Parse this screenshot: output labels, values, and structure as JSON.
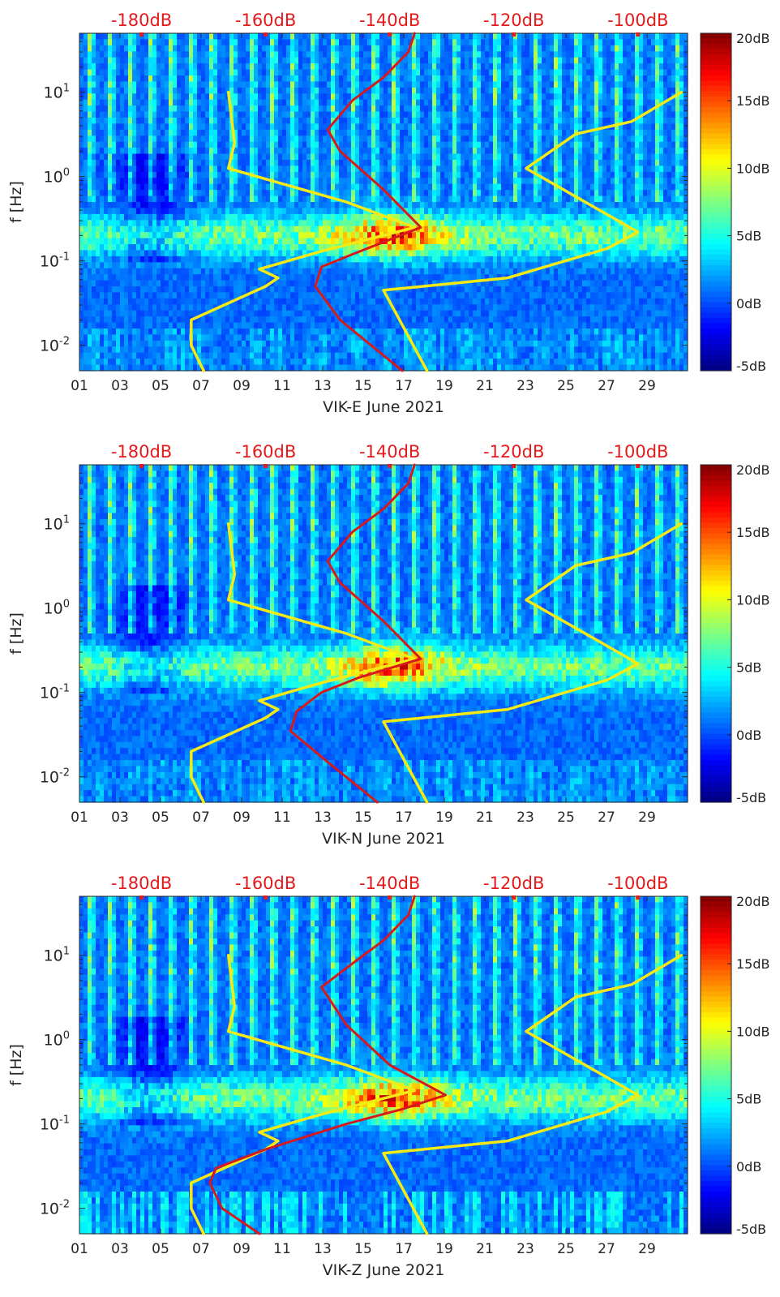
{
  "colors": {
    "top_axis_red": "#e41a1c",
    "noise_model_yellow": "#f5ea14",
    "psd_red": "#d7191c",
    "axis": "#262626",
    "colormap": [
      "#00008f",
      "#0000ff",
      "#0080ff",
      "#00ffff",
      "#80ff80",
      "#ffff00",
      "#ff8000",
      "#ff0000",
      "#800000"
    ]
  },
  "chart_data": [
    {
      "type": "heatmap",
      "title": "",
      "xlabel": "VIK-E June 2021",
      "ylabel": "f [Hz]",
      "x_ticks": [
        "01",
        "03",
        "05",
        "07",
        "09",
        "11",
        "13",
        "15",
        "17",
        "19",
        "21",
        "23",
        "25",
        "27",
        "29"
      ],
      "y_ticks": [
        "10^-2",
        "10^-1",
        "10^0",
        "10^1"
      ],
      "y_scale": "log",
      "ylim_hz": [
        0.005,
        50
      ],
      "xlim_day": [
        1,
        31
      ],
      "top_axis_ticks": [
        "-180dB",
        "-160dB",
        "-140dB",
        "-120dB",
        "-100dB"
      ],
      "top_axis_range_db": [
        -190,
        -92
      ],
      "colorbar": {
        "ticks": [
          "20dB",
          "15dB",
          "10dB",
          "5dB",
          "0dB",
          "-5dB"
        ],
        "range_db": [
          -5,
          20
        ]
      },
      "low_noise_model": [
        [
          -170,
          0.005
        ],
        [
          -172,
          0.01
        ],
        [
          -172,
          0.02
        ],
        [
          -160,
          0.05
        ],
        [
          -158,
          0.063
        ],
        [
          -161,
          0.08
        ],
        [
          -151,
          0.13
        ],
        [
          -136,
          0.25
        ],
        [
          -147,
          0.5
        ],
        [
          -166,
          1.25
        ],
        [
          -165,
          2.5
        ],
        [
          -166,
          10
        ]
      ],
      "high_noise_model": [
        [
          -134,
          0.005
        ],
        [
          -141,
          0.045
        ],
        [
          -121,
          0.063
        ],
        [
          -105,
          0.14
        ],
        [
          -100,
          0.22
        ],
        [
          -118,
          1.25
        ],
        [
          -110,
          3.2
        ],
        [
          -101,
          4.5
        ],
        [
          -93,
          10
        ]
      ],
      "psd_curve": [
        [
          -138,
          0.005
        ],
        [
          -148,
          0.02
        ],
        [
          -152,
          0.05
        ],
        [
          -151,
          0.085
        ],
        [
          -146,
          0.12
        ],
        [
          -135,
          0.25
        ],
        [
          -141,
          0.7
        ],
        [
          -148,
          2
        ],
        [
          -150,
          3.6
        ],
        [
          -146,
          8
        ],
        [
          -141,
          15
        ],
        [
          -137,
          30
        ],
        [
          -136,
          50
        ]
      ],
      "hotspot_day": 16.5
    },
    {
      "type": "heatmap",
      "title": "",
      "xlabel": "VIK-N June 2021",
      "ylabel": "f [Hz]",
      "x_ticks": [
        "01",
        "03",
        "05",
        "07",
        "09",
        "11",
        "13",
        "15",
        "17",
        "19",
        "21",
        "23",
        "25",
        "27",
        "29"
      ],
      "y_ticks": [
        "10^-2",
        "10^-1",
        "10^0",
        "10^1"
      ],
      "y_scale": "log",
      "ylim_hz": [
        0.005,
        50
      ],
      "xlim_day": [
        1,
        31
      ],
      "top_axis_ticks": [
        "-180dB",
        "-160dB",
        "-140dB",
        "-120dB",
        "-100dB"
      ],
      "top_axis_range_db": [
        -190,
        -92
      ],
      "colorbar": {
        "ticks": [
          "20dB",
          "15dB",
          "10dB",
          "5dB",
          "0dB",
          "-5dB"
        ],
        "range_db": [
          -5,
          20
        ]
      },
      "low_noise_model": [
        [
          -170,
          0.005
        ],
        [
          -172,
          0.01
        ],
        [
          -172,
          0.02
        ],
        [
          -160,
          0.05
        ],
        [
          -158,
          0.063
        ],
        [
          -161,
          0.08
        ],
        [
          -151,
          0.13
        ],
        [
          -136,
          0.25
        ],
        [
          -147,
          0.5
        ],
        [
          -166,
          1.25
        ],
        [
          -165,
          2.5
        ],
        [
          -166,
          10
        ]
      ],
      "high_noise_model": [
        [
          -134,
          0.005
        ],
        [
          -141,
          0.045
        ],
        [
          -121,
          0.063
        ],
        [
          -105,
          0.14
        ],
        [
          -100,
          0.22
        ],
        [
          -118,
          1.25
        ],
        [
          -110,
          3.2
        ],
        [
          -101,
          4.5
        ],
        [
          -93,
          10
        ]
      ],
      "psd_curve": [
        [
          -142,
          0.005
        ],
        [
          -150,
          0.015
        ],
        [
          -156,
          0.035
        ],
        [
          -155,
          0.06
        ],
        [
          -151,
          0.1
        ],
        [
          -145,
          0.15
        ],
        [
          -135,
          0.25
        ],
        [
          -141,
          0.7
        ],
        [
          -148,
          2
        ],
        [
          -150,
          3.6
        ],
        [
          -146,
          8
        ],
        [
          -141,
          15
        ],
        [
          -137,
          30
        ],
        [
          -136,
          50
        ]
      ],
      "hotspot_day": 16.5
    },
    {
      "type": "heatmap",
      "title": "",
      "xlabel": "VIK-Z June 2021",
      "ylabel": "f [Hz]",
      "x_ticks": [
        "01",
        "03",
        "05",
        "07",
        "09",
        "11",
        "13",
        "15",
        "17",
        "19",
        "21",
        "23",
        "25",
        "27",
        "29"
      ],
      "y_ticks": [
        "10^-2",
        "10^-1",
        "10^0",
        "10^1"
      ],
      "y_scale": "log",
      "ylim_hz": [
        0.005,
        50
      ],
      "xlim_day": [
        1,
        31
      ],
      "top_axis_ticks": [
        "-180dB",
        "-160dB",
        "-140dB",
        "-120dB",
        "-100dB"
      ],
      "top_axis_range_db": [
        -190,
        -92
      ],
      "colorbar": {
        "ticks": [
          "20dB",
          "15dB",
          "10dB",
          "5dB",
          "0dB",
          "-5dB"
        ],
        "range_db": [
          -5,
          20
        ]
      },
      "low_noise_model": [
        [
          -170,
          0.005
        ],
        [
          -172,
          0.01
        ],
        [
          -172,
          0.02
        ],
        [
          -160,
          0.05
        ],
        [
          -158,
          0.063
        ],
        [
          -161,
          0.08
        ],
        [
          -151,
          0.13
        ],
        [
          -136,
          0.25
        ],
        [
          -147,
          0.5
        ],
        [
          -166,
          1.25
        ],
        [
          -165,
          2.5
        ],
        [
          -166,
          10
        ]
      ],
      "high_noise_model": [
        [
          -134,
          0.005
        ],
        [
          -141,
          0.045
        ],
        [
          -121,
          0.063
        ],
        [
          -105,
          0.14
        ],
        [
          -100,
          0.22
        ],
        [
          -118,
          1.25
        ],
        [
          -110,
          3.2
        ],
        [
          -101,
          4.5
        ],
        [
          -93,
          10
        ]
      ],
      "psd_curve": [
        [
          -161,
          0.005
        ],
        [
          -167,
          0.01
        ],
        [
          -169,
          0.02
        ],
        [
          -168,
          0.03
        ],
        [
          -160,
          0.05
        ],
        [
          -147,
          0.1
        ],
        [
          -138,
          0.15
        ],
        [
          -131,
          0.22
        ],
        [
          -140,
          0.5
        ],
        [
          -147,
          1.5
        ],
        [
          -151,
          4.2
        ],
        [
          -146,
          8
        ],
        [
          -141,
          15
        ],
        [
          -137,
          30
        ],
        [
          -136,
          50
        ]
      ],
      "hotspot_day": 16.5
    }
  ]
}
